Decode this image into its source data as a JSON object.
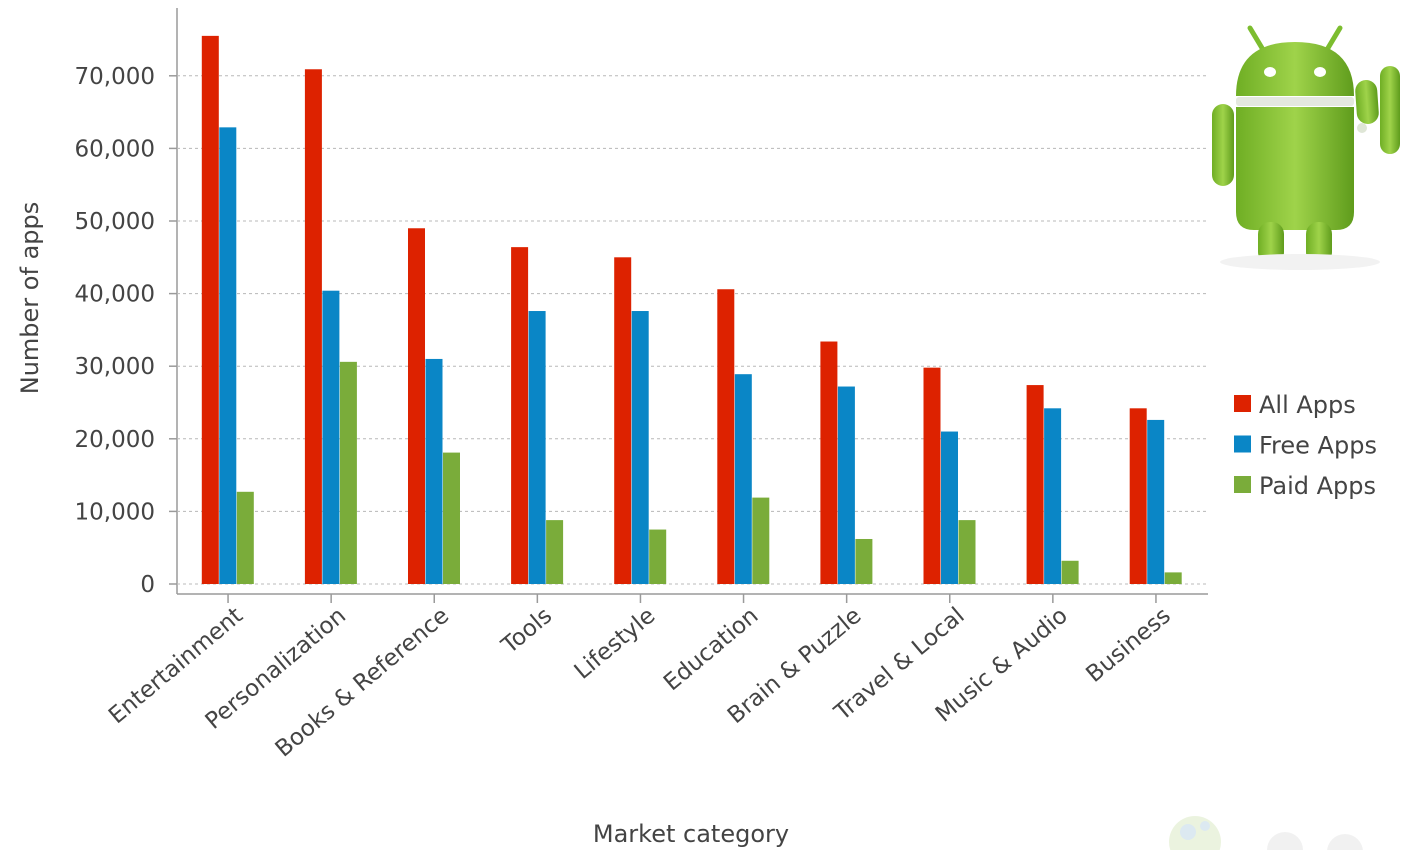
{
  "chart_data": {
    "type": "bar",
    "title": "",
    "xlabel": "Market category",
    "ylabel": "Number of apps",
    "categories": [
      "Entertainment",
      "Personalization",
      "Books & Reference",
      "Tools",
      "Lifestyle",
      "Education",
      "Brain & Puzzle",
      "Travel & Local",
      "Music & Audio",
      "Business"
    ],
    "series": [
      {
        "name": "All Apps",
        "color": "#dd2200",
        "values": [
          75500,
          70900,
          49000,
          46400,
          45000,
          40600,
          33400,
          29800,
          27400,
          24200
        ]
      },
      {
        "name": "Free Apps",
        "color": "#0a86c6",
        "values": [
          62900,
          40400,
          31000,
          37600,
          37600,
          28900,
          27200,
          21000,
          24200,
          22600
        ]
      },
      {
        "name": "Paid Apps",
        "color": "#7aac3a",
        "values": [
          12700,
          30600,
          18100,
          8800,
          7500,
          11900,
          6200,
          8800,
          3200,
          1600
        ]
      }
    ],
    "yticks": [
      "0",
      "10,000",
      "20,000",
      "30,000",
      "40,000",
      "50,000",
      "60,000",
      "70,000"
    ],
    "ylim": [
      0,
      80000
    ],
    "grid": true,
    "legend_position": "right"
  },
  "decorations": {
    "mascot_icon": "android-robot-icon",
    "watermark_icon": "watermark-logo-icon"
  }
}
